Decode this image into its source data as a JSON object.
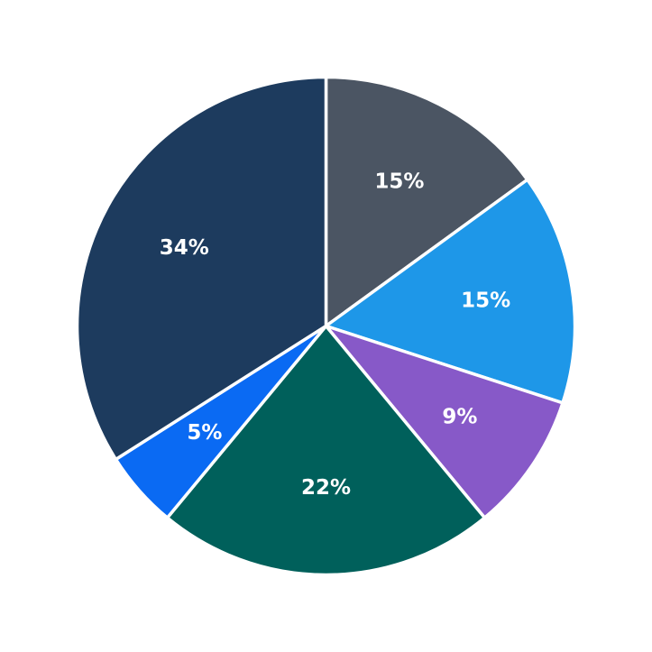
{
  "chart_data": {
    "type": "pie",
    "start": "top",
    "direction": "clockwise",
    "background": "#ffffff",
    "label_color": "#ffffff",
    "label_distance_fraction": 0.65,
    "slice_border_color": "#ffffff",
    "slice_border_width": 3.5,
    "slices": [
      {
        "label": "15%",
        "value": 15,
        "color": "#4b5563"
      },
      {
        "label": "15%",
        "value": 15,
        "color": "#1e97e8"
      },
      {
        "label": "9%",
        "value": 9,
        "color": "#8759c8"
      },
      {
        "label": "22%",
        "value": 22,
        "color": "#00605b"
      },
      {
        "label": "5%",
        "value": 5,
        "color": "#0a6af3"
      },
      {
        "label": "34%",
        "value": 34,
        "color": "#1d3b5e"
      }
    ]
  }
}
